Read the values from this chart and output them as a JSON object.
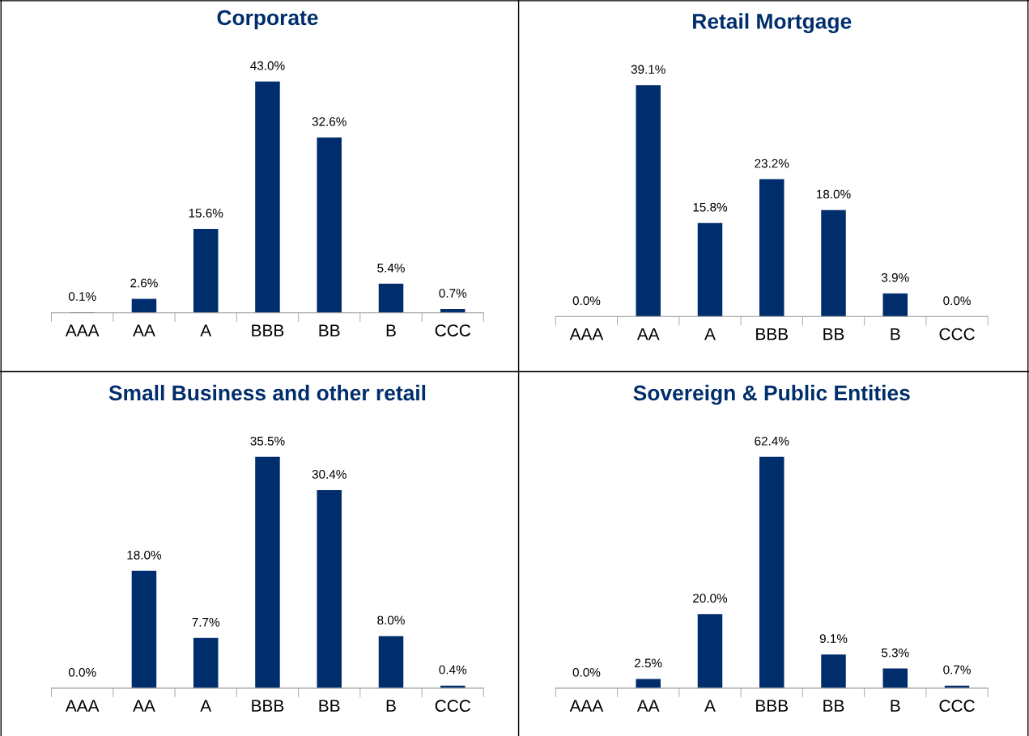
{
  "chart_data": [
    {
      "type": "bar",
      "title": "Corporate",
      "categories": [
        "AAA",
        "AA",
        "A",
        "BBB",
        "BB",
        "B",
        "CCC"
      ],
      "values": [
        0.1,
        2.6,
        15.6,
        43.0,
        32.6,
        5.4,
        0.7
      ],
      "value_labels": [
        "0.1%",
        "2.6%",
        "15.6%",
        "43.0%",
        "32.6%",
        "5.4%",
        "0.7%"
      ],
      "color": "#002d6b",
      "relative": false
    },
    {
      "type": "bar",
      "title": "Retail Mortgage",
      "categories": [
        "AAA",
        "AA",
        "A",
        "BBB",
        "BB",
        "B",
        "CCC"
      ],
      "values": [
        0.0,
        39.1,
        15.8,
        23.2,
        18.0,
        3.9,
        0.0
      ],
      "value_labels": [
        "0.0%",
        "39.1%",
        "15.8%",
        "23.2%",
        "18.0%",
        "3.9%",
        "0.0%"
      ],
      "color": "#002d6b"
    },
    {
      "type": "bar",
      "title": "Small Business and other retail",
      "categories": [
        "AAA",
        "AA",
        "A",
        "BBB",
        "BB",
        "B",
        "CCC"
      ],
      "values": [
        0.0,
        18.0,
        7.7,
        35.5,
        30.4,
        8.0,
        0.4
      ],
      "value_labels": [
        "0.0%",
        "18.0%",
        "7.7%",
        "35.5%",
        "30.4%",
        "8.0%",
        "0.4%"
      ],
      "color": "#002d6b"
    },
    {
      "type": "bar",
      "title": "Sovereign & Public Entities",
      "categories": [
        "AAA",
        "AA",
        "A",
        "BBB",
        "BB",
        "B",
        "CCC"
      ],
      "values": [
        0.0,
        2.5,
        20.0,
        62.4,
        9.1,
        5.3,
        0.7
      ],
      "value_labels": [
        "0.0%",
        "2.5%",
        "20.0%",
        "62.4%",
        "9.1%",
        "5.3%",
        "0.7%"
      ],
      "color": "#002d6b"
    }
  ]
}
